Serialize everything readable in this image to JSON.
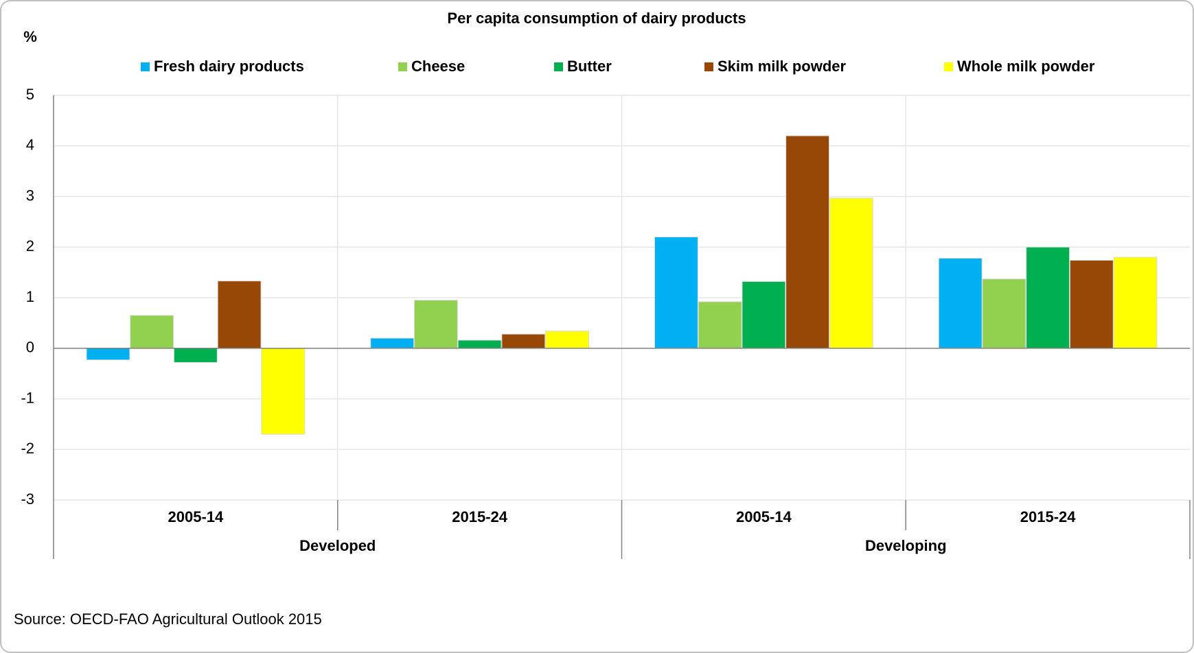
{
  "chart_data": {
    "type": "bar",
    "title": "Per capita consumption of dairy products",
    "y_label": "%",
    "categories": [
      "2005-14",
      "2015-24",
      "2005-14",
      "2015-24"
    ],
    "groups": [
      "Developed",
      "Developing"
    ],
    "series": [
      {
        "name": "Fresh dairy products",
        "color": "#00b0f0",
        "values": [
          -0.23,
          0.2,
          2.2,
          1.78
        ]
      },
      {
        "name": "Cheese",
        "color": "#92d050",
        "values": [
          0.65,
          0.95,
          0.92,
          1.37
        ]
      },
      {
        "name": "Butter",
        "color": "#00b050",
        "values": [
          -0.28,
          0.16,
          1.32,
          2.0
        ]
      },
      {
        "name": "Skim milk powder",
        "color": "#974706",
        "values": [
          1.33,
          0.28,
          4.2,
          1.74
        ]
      },
      {
        "name": "Whole milk powder",
        "color": "#ffff00",
        "values": [
          -1.7,
          0.34,
          2.97,
          1.8
        ]
      }
    ],
    "ylim": [
      -3,
      5
    ],
    "yticks": [
      -3,
      -2,
      -1,
      0,
      1,
      2,
      3,
      4,
      5
    ],
    "grid": true,
    "legend": "top",
    "source": "Source: OECD-FAO Agricultural Outlook 2015"
  }
}
